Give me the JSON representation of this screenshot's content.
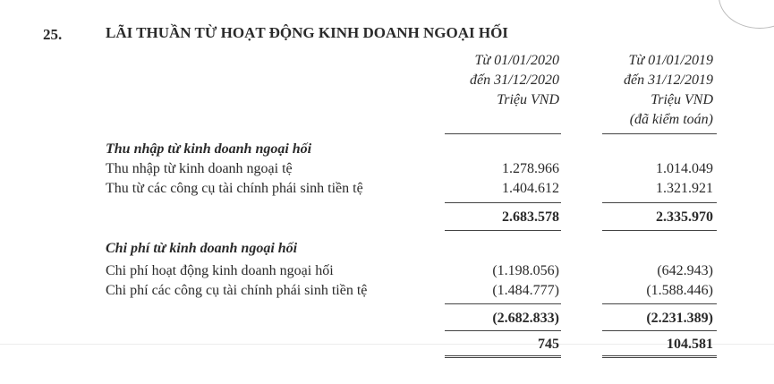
{
  "section": {
    "number": "25.",
    "title": "LÃI THUẦN TỪ HOẠT ĐỘNG KINH DOANH NGOẠI HỐI"
  },
  "columns": [
    {
      "lines": [
        "Từ 01/01/2020",
        "đến 31/12/2020",
        "Triệu VND"
      ]
    },
    {
      "lines": [
        "Từ 01/01/2019",
        "đến 31/12/2019",
        "Triệu VND",
        "(đã kiểm toán)"
      ]
    }
  ],
  "income": {
    "heading": "Thu nhập từ kinh doanh ngoại hối",
    "rows": [
      {
        "label": "Thu nhập từ kinh doanh ngoại tệ",
        "values": [
          "1.278.966",
          "1.014.049"
        ]
      },
      {
        "label": "Thu từ các công cụ tài chính phái sinh tiền tệ",
        "values": [
          "1.404.612",
          "1.321.921"
        ]
      }
    ],
    "total": [
      "2.683.578",
      "2.335.970"
    ]
  },
  "expense": {
    "heading": "Chi phí từ kinh doanh ngoại hối",
    "rows": [
      {
        "label": "Chi phí hoạt động kinh doanh ngoại hối",
        "values": [
          "(1.198.056)",
          "(642.943)"
        ]
      },
      {
        "label": "Chi phí các công cụ tài chính phái sinh tiền tệ",
        "values": [
          "(1.484.777)",
          "(1.588.446)"
        ]
      }
    ],
    "total": [
      "(2.682.833)",
      "(2.231.389)"
    ]
  },
  "net": [
    "745",
    "104.581"
  ]
}
